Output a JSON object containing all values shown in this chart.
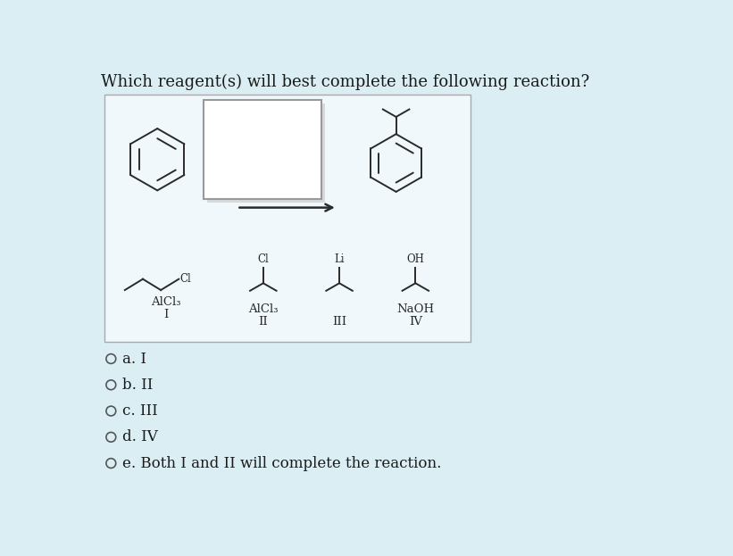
{
  "title": "Which reagent(s) will best complete the following reaction?",
  "bg_color": "#dbeef4",
  "panel_bg": "#f0f8fb",
  "box_bg": "#ffffff",
  "box_border": "#999999",
  "line_color": "#2a2a2a",
  "text_color": "#1a1a1a",
  "choices": [
    "a. I",
    "b. II",
    "c. III",
    "d. IV",
    "e. Both I and II will complete the reaction."
  ]
}
